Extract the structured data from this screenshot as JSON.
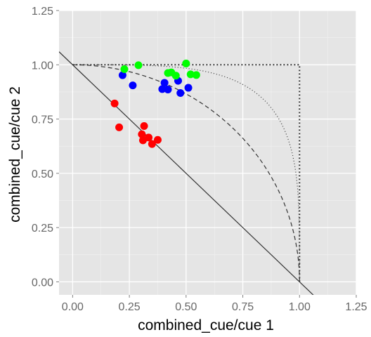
{
  "chart_data": {
    "type": "scatter",
    "xlabel": "combined_cue/cue 1",
    "ylabel": "combined_cue/cue 2",
    "xlim": [
      -0.06,
      1.25
    ],
    "ylim": [
      -0.06,
      1.25
    ],
    "x_ticks": [
      "0.00",
      "0.25",
      "0.50",
      "0.75",
      "1.00",
      "1.25"
    ],
    "y_ticks": [
      "0.00",
      "0.25",
      "0.50",
      "0.75",
      "1.00",
      "1.25"
    ],
    "x_tick_values": [
      0,
      0.25,
      0.5,
      0.75,
      1.0,
      1.25
    ],
    "y_tick_values": [
      0,
      0.25,
      0.5,
      0.75,
      1.0,
      1.25
    ],
    "grid": true,
    "background": "#E5E5E5",
    "legend": "none",
    "series": [
      {
        "color": "#FF0000",
        "points": [
          [
            0.185,
            0.822
          ],
          [
            0.205,
            0.712
          ],
          [
            0.305,
            0.68
          ],
          [
            0.315,
            0.718
          ],
          [
            0.31,
            0.652
          ],
          [
            0.335,
            0.665
          ],
          [
            0.35,
            0.635
          ],
          [
            0.375,
            0.654
          ]
        ]
      },
      {
        "color": "#0000FF",
        "points": [
          [
            0.22,
            0.952
          ],
          [
            0.265,
            0.905
          ],
          [
            0.395,
            0.888
          ],
          [
            0.405,
            0.917
          ],
          [
            0.42,
            0.886
          ],
          [
            0.465,
            0.926
          ],
          [
            0.475,
            0.87
          ],
          [
            0.51,
            0.894
          ]
        ]
      },
      {
        "color": "#00FF00",
        "points": [
          [
            0.228,
            0.98
          ],
          [
            0.29,
            0.998
          ],
          [
            0.42,
            0.962
          ],
          [
            0.435,
            0.965
          ],
          [
            0.455,
            0.95
          ],
          [
            0.5,
            1.006
          ],
          [
            0.52,
            0.956
          ],
          [
            0.545,
            0.953
          ]
        ]
      }
    ],
    "reference_lines": [
      {
        "kind": "linear",
        "style": "solid",
        "color": "#333333",
        "equation": "y = 1 - x"
      },
      {
        "kind": "ellipse",
        "style": "dashed",
        "color": "#333333",
        "equation": "x^2 + y^2 = 1"
      },
      {
        "kind": "superellipse",
        "style": "dotted",
        "color": "#333333",
        "exponent": 4,
        "equation": "x^4 + y^4 = 1"
      },
      {
        "kind": "bound",
        "style": "dotted",
        "color": "#333333",
        "equation": "max(x, y) = 1"
      }
    ]
  }
}
